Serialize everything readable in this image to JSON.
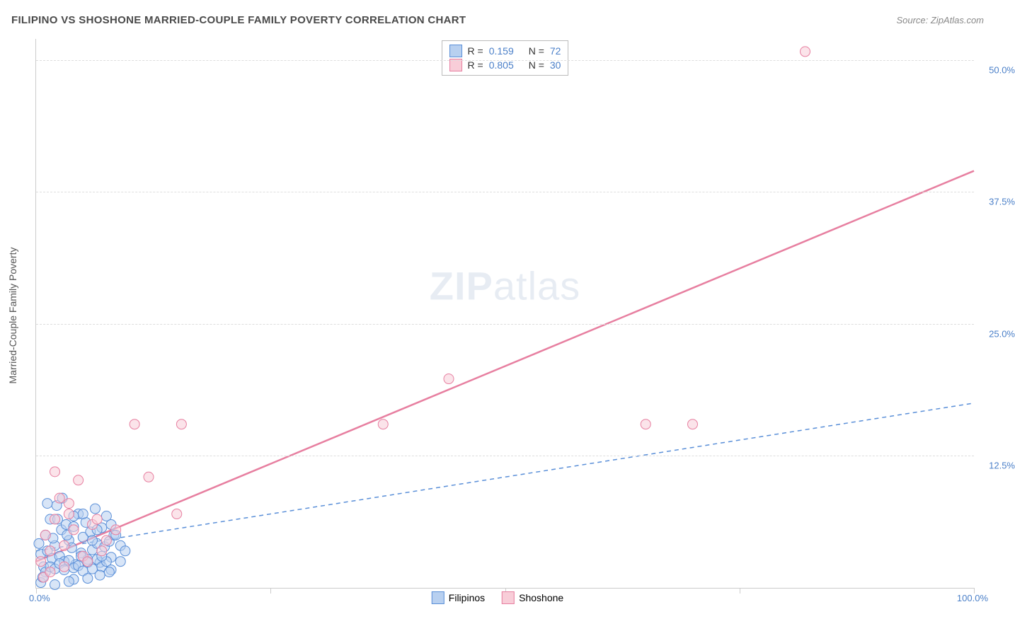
{
  "title": "FILIPINO VS SHOSHONE MARRIED-COUPLE FAMILY POVERTY CORRELATION CHART",
  "source_label": "Source: ZipAtlas.com",
  "y_axis_title": "Married-Couple Family Poverty",
  "watermark_a": "ZIP",
  "watermark_b": "atlas",
  "legend_top": [
    {
      "swatch_fill": "#b8d0f0",
      "swatch_stroke": "#5a8fd8",
      "r_label": "R =",
      "r_val": "0.159",
      "n_label": "N =",
      "n_val": "72"
    },
    {
      "swatch_fill": "#f8cdd8",
      "swatch_stroke": "#e77fa0",
      "r_label": "R =",
      "r_val": "0.805",
      "n_label": "N =",
      "n_val": "30"
    }
  ],
  "legend_bottom": [
    {
      "swatch_fill": "#b8d0f0",
      "swatch_stroke": "#5a8fd8",
      "label": "Filipinos"
    },
    {
      "swatch_fill": "#f8cdd8",
      "swatch_stroke": "#e77fa0",
      "label": "Shoshone"
    }
  ],
  "chart": {
    "type": "scatter",
    "xlim": [
      0,
      100
    ],
    "ylim": [
      0,
      52
    ],
    "x_ticks": [
      0,
      25,
      50,
      75,
      100
    ],
    "x_tick_labels": {
      "0": "0.0%",
      "100": "100.0%"
    },
    "y_ticks": [
      12.5,
      25.0,
      37.5,
      50.0
    ],
    "y_tick_labels": [
      "12.5%",
      "25.0%",
      "37.5%",
      "50.0%"
    ],
    "grid_color": "#dddddd",
    "background_color": "#ffffff",
    "marker_radius": 7,
    "marker_opacity": 0.55,
    "series": [
      {
        "name": "Filipinos",
        "fill": "#b8d0f0",
        "stroke": "#5a8fd8",
        "line_style": "dashed",
        "line_width": 1.5,
        "trend_line": {
          "x1": 0,
          "y1": 3.5,
          "x2": 100,
          "y2": 17.5
        },
        "points": [
          [
            0.5,
            3.2
          ],
          [
            0.8,
            2.0
          ],
          [
            1.0,
            5.0
          ],
          [
            1.2,
            3.5
          ],
          [
            1.5,
            6.5
          ],
          [
            1.7,
            2.8
          ],
          [
            2.0,
            4.0
          ],
          [
            2.2,
            7.8
          ],
          [
            2.5,
            3.0
          ],
          [
            2.7,
            5.5
          ],
          [
            3.0,
            2.5
          ],
          [
            3.2,
            6.0
          ],
          [
            3.5,
            4.5
          ],
          [
            3.8,
            3.8
          ],
          [
            4.0,
            5.8
          ],
          [
            4.2,
            2.2
          ],
          [
            4.5,
            7.0
          ],
          [
            4.8,
            3.3
          ],
          [
            5.0,
            4.8
          ],
          [
            5.3,
            6.2
          ],
          [
            5.5,
            2.7
          ],
          [
            5.8,
            5.3
          ],
          [
            6.0,
            3.6
          ],
          [
            6.3,
            7.5
          ],
          [
            6.5,
            4.2
          ],
          [
            6.8,
            2.4
          ],
          [
            7.0,
            5.7
          ],
          [
            7.3,
            3.9
          ],
          [
            7.5,
            6.8
          ],
          [
            7.8,
            4.4
          ],
          [
            8.0,
            2.9
          ],
          [
            8.3,
            5.0
          ],
          [
            1.0,
            1.5
          ],
          [
            1.5,
            2.0
          ],
          [
            2.0,
            1.8
          ],
          [
            2.5,
            2.3
          ],
          [
            3.0,
            1.7
          ],
          [
            3.5,
            2.6
          ],
          [
            4.0,
            1.9
          ],
          [
            4.5,
            2.1
          ],
          [
            5.0,
            1.6
          ],
          [
            5.5,
            2.4
          ],
          [
            6.0,
            1.8
          ],
          [
            6.5,
            2.7
          ],
          [
            7.0,
            2.0
          ],
          [
            7.5,
            2.5
          ],
          [
            8.0,
            1.7
          ],
          [
            0.5,
            0.5
          ],
          [
            9.0,
            4.0
          ],
          [
            9.5,
            3.5
          ],
          [
            1.2,
            8.0
          ],
          [
            2.8,
            8.5
          ],
          [
            4.0,
            0.8
          ],
          [
            5.5,
            0.9
          ],
          [
            6.8,
            1.2
          ],
          [
            7.8,
            1.5
          ],
          [
            2.0,
            0.3
          ],
          [
            3.5,
            0.6
          ],
          [
            0.3,
            4.2
          ],
          [
            0.7,
            1.0
          ],
          [
            1.8,
            4.7
          ],
          [
            3.3,
            5.0
          ],
          [
            4.8,
            3.0
          ],
          [
            6.0,
            4.5
          ],
          [
            7.0,
            3.0
          ],
          [
            8.5,
            5.0
          ],
          [
            9.0,
            2.5
          ],
          [
            2.3,
            6.5
          ],
          [
            5.0,
            7.0
          ],
          [
            6.5,
            5.5
          ],
          [
            8.0,
            6.0
          ],
          [
            4.0,
            6.8
          ]
        ]
      },
      {
        "name": "Shoshone",
        "fill": "#f8cdd8",
        "stroke": "#e77fa0",
        "line_style": "solid",
        "line_width": 2.5,
        "trend_line": {
          "x1": 0,
          "y1": 2.5,
          "x2": 100,
          "y2": 39.5
        },
        "points": [
          [
            0.5,
            2.5
          ],
          [
            1.0,
            5.0
          ],
          [
            1.5,
            3.5
          ],
          [
            2.0,
            6.5
          ],
          [
            2.5,
            8.5
          ],
          [
            3.0,
            4.0
          ],
          [
            3.5,
            7.0
          ],
          [
            4.0,
            5.5
          ],
          [
            5.0,
            3.0
          ],
          [
            6.0,
            6.0
          ],
          [
            2.0,
            11.0
          ],
          [
            3.5,
            8.0
          ],
          [
            4.5,
            10.2
          ],
          [
            6.5,
            6.5
          ],
          [
            7.5,
            4.5
          ],
          [
            10.5,
            15.5
          ],
          [
            15.5,
            15.5
          ],
          [
            12.0,
            10.5
          ],
          [
            15.0,
            7.0
          ],
          [
            37.0,
            15.5
          ],
          [
            44.0,
            19.8
          ],
          [
            65.0,
            15.5
          ],
          [
            70.0,
            15.5
          ],
          [
            82.0,
            50.8
          ],
          [
            0.8,
            1.0
          ],
          [
            1.5,
            1.5
          ],
          [
            3.0,
            2.0
          ],
          [
            5.5,
            2.5
          ],
          [
            7.0,
            3.5
          ],
          [
            8.5,
            5.5
          ]
        ]
      }
    ]
  }
}
